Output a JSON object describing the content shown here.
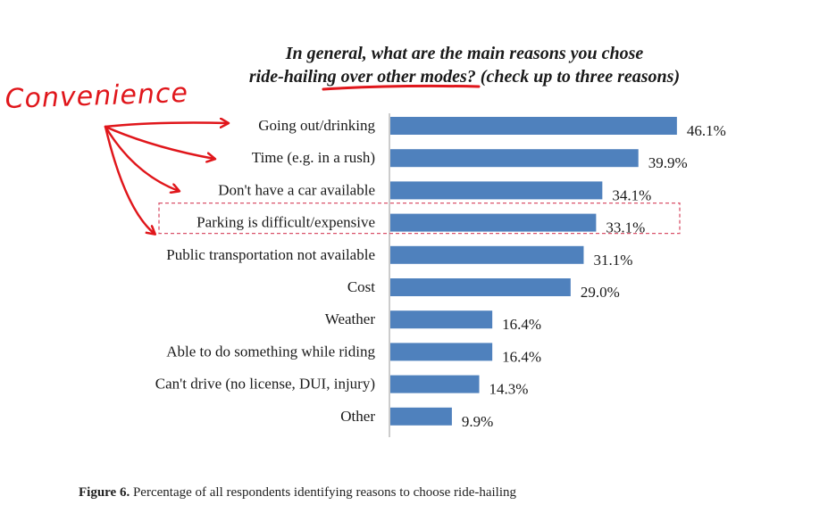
{
  "chart_data": {
    "type": "bar",
    "orientation": "horizontal",
    "title": "In general, what are the main reasons you chose ride-hailing over other modes? (check up to three reasons)",
    "title_lines": [
      "In general, what are the main reasons you chose",
      "ride-hailing over other modes? (check up to three reasons)"
    ],
    "title_underlined_phrase": "over other modes?",
    "categories": [
      "Going out/drinking",
      "Time (e.g. in a rush)",
      "Don't have a car available",
      "Parking is difficult/expensive",
      "Public transportation not available",
      "Cost",
      "Weather",
      "Able to do something while riding",
      "Can't drive (no license, DUI, injury)",
      "Other"
    ],
    "values": [
      46.1,
      39.9,
      34.1,
      33.1,
      31.1,
      29.0,
      16.4,
      16.4,
      14.3,
      9.9
    ],
    "value_labels": [
      "46.1%",
      "39.9%",
      "34.1%",
      "33.1%",
      "31.1%",
      "29.0%",
      "16.4%",
      "16.4%",
      "14.3%",
      "9.9%"
    ],
    "xlim": [
      0,
      50
    ],
    "bar_color": "#4f81bd",
    "highlighted_category": "Parking is difficult/expensive",
    "highlight_color": "#d9536b",
    "grid": false,
    "legend": "none"
  },
  "annotation": {
    "text": "Convenience",
    "color": "#e0161b",
    "arrow_targets": [
      "Going out/drinking",
      "Time (e.g. in a rush)",
      "Don't have a car available",
      "Parking is difficult/expensive"
    ]
  },
  "caption": {
    "label": "Figure 6.",
    "text": "Percentage of all respondents identifying reasons to choose ride-hailing"
  }
}
